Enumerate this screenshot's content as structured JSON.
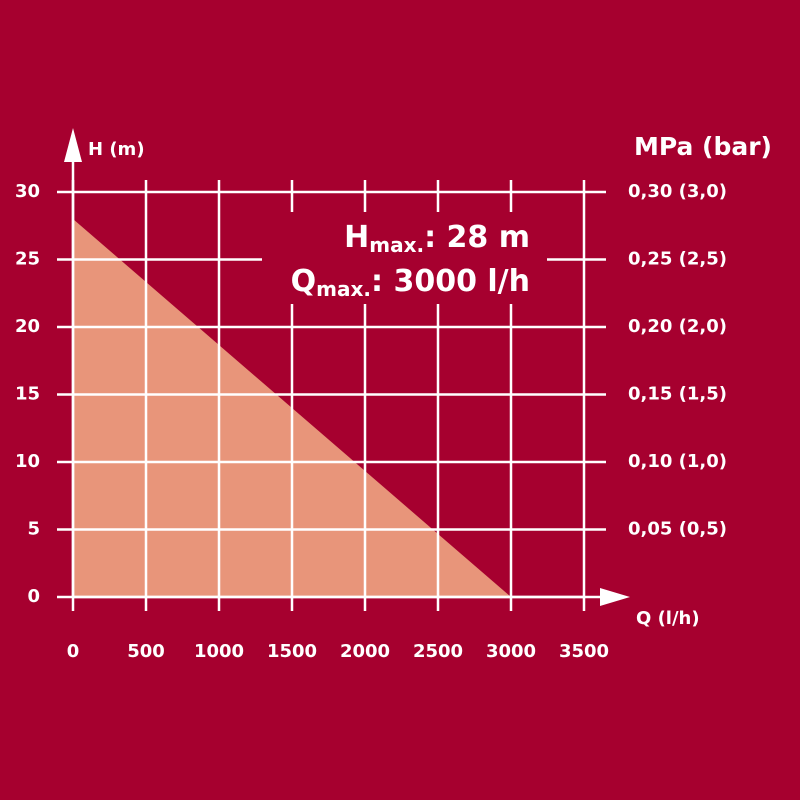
{
  "chart_data": {
    "type": "area",
    "x_label": "Q (l/h)",
    "y_label": "H (m)",
    "y2_label": "MPa (bar)",
    "x": [
      0,
      3000
    ],
    "series": [
      {
        "values": [
          28,
          0
        ],
        "color": "#e8957a"
      }
    ],
    "xlim": [
      0,
      3500
    ],
    "xticks": [
      0,
      500,
      1000,
      1500,
      2000,
      2500,
      3000,
      3500
    ],
    "ylim": [
      0,
      30
    ],
    "yticks": [
      0,
      5,
      10,
      15,
      20,
      25,
      30
    ],
    "y2lim": [
      0,
      0.3
    ],
    "y2ticks": [
      {
        "value": 0.05,
        "label": "0,05 (0,5)"
      },
      {
        "value": 0.1,
        "label": "0,10 (1,0)"
      },
      {
        "value": 0.15,
        "label": "0,15 (1,5)"
      },
      {
        "value": 0.2,
        "label": "0,20 (2,0)"
      },
      {
        "value": 0.25,
        "label": "0,25 (2,5)"
      },
      {
        "value": 0.3,
        "label": "0,30 (3,0)"
      }
    ],
    "grid": true,
    "annotations": [
      {
        "main": "H",
        "sub": "max.",
        "rest": ": 28 m"
      },
      {
        "main": "Q",
        "sub": "max.",
        "rest": ": 3000 l/h"
      }
    ]
  }
}
